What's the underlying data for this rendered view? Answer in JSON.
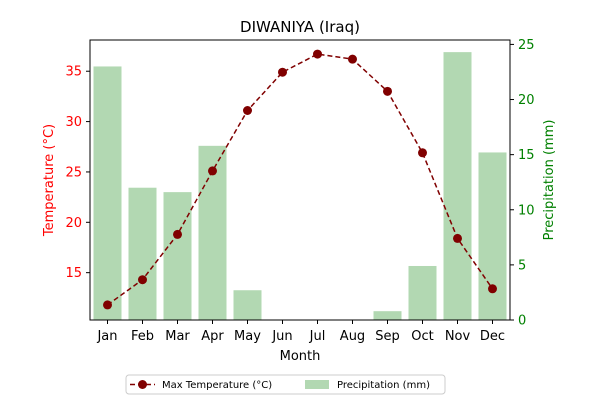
{
  "chart_data": {
    "type": "bar",
    "title": "DIWANIYA (Iraq)",
    "xlabel": "Month",
    "categories": [
      "Jan",
      "Feb",
      "Mar",
      "Apr",
      "May",
      "Jun",
      "Jul",
      "Aug",
      "Sep",
      "Oct",
      "Nov",
      "Dec"
    ],
    "y_left": {
      "label": "Temperature (°C)",
      "ticks": [
        15,
        20,
        25,
        30,
        35
      ],
      "range": [
        10.3,
        38.1
      ],
      "color": "#ff0000"
    },
    "y_right": {
      "label": "Precipitation (mm)",
      "ticks": [
        0,
        5,
        10,
        15,
        20,
        25
      ],
      "range": [
        0,
        25.4
      ],
      "color": "#008000"
    },
    "series": [
      {
        "name": "Max Temperature (°C)",
        "type": "line",
        "axis": "left",
        "color": "#800000",
        "style": "dashed, circle markers",
        "values": [
          11.8,
          14.3,
          18.8,
          25.1,
          31.1,
          34.9,
          36.7,
          36.2,
          33.0,
          26.9,
          18.4,
          13.4
        ]
      },
      {
        "name": "Precipitation (mm)",
        "type": "bar",
        "axis": "right",
        "color": "#b2d8b2",
        "values": [
          23.0,
          12.0,
          11.6,
          15.8,
          2.7,
          0.0,
          0.0,
          0.0,
          0.8,
          4.9,
          24.3,
          15.2
        ]
      }
    ],
    "grid": false,
    "legend": "bottom-center"
  }
}
